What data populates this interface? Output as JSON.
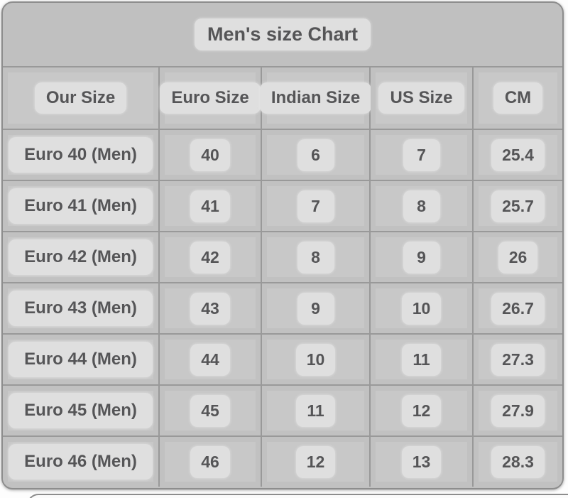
{
  "title": "Men's size Chart",
  "table": {
    "headers": [
      "Our Size",
      "Euro Size",
      "Indian Size",
      "US Size",
      "CM"
    ],
    "rows": [
      [
        "Euro 40 (Men)",
        "40",
        "6",
        "7",
        "25.4"
      ],
      [
        "Euro 41 (Men)",
        "41",
        "7",
        "8",
        "25.7"
      ],
      [
        "Euro 42 (Men)",
        "42",
        "8",
        "9",
        "26"
      ],
      [
        "Euro 43 (Men)",
        "43",
        "9",
        "10",
        "26.7"
      ],
      [
        "Euro 44 (Men)",
        "44",
        "10",
        "11",
        "27.3"
      ],
      [
        "Euro 45 (Men)",
        "45",
        "11",
        "12",
        "27.9"
      ],
      [
        "Euro 46 (Men)",
        "46",
        "12",
        "13",
        "28.3"
      ]
    ]
  },
  "colors": {
    "page_bg": "#fdfdfd",
    "card_bg": "#c0c0c0",
    "cell_bg": "#c8c8c8",
    "pill_bg": "#dfdfdf",
    "grid_line": "#999999",
    "border": "#8d8d8d",
    "text": "#555557"
  },
  "chart_data": {
    "type": "table",
    "title": "Men's size Chart",
    "columns": [
      "Our Size",
      "Euro Size",
      "Indian Size",
      "US Size",
      "CM"
    ],
    "rows": [
      [
        "Euro 40 (Men)",
        40,
        6,
        7,
        25.4
      ],
      [
        "Euro 41 (Men)",
        41,
        7,
        8,
        25.7
      ],
      [
        "Euro 42 (Men)",
        42,
        8,
        9,
        26
      ],
      [
        "Euro 43 (Men)",
        43,
        9,
        10,
        26.7
      ],
      [
        "Euro 44 (Men)",
        44,
        10,
        11,
        27.3
      ],
      [
        "Euro 45 (Men)",
        45,
        11,
        12,
        27.9
      ],
      [
        "Euro 46 (Men)",
        46,
        12,
        13,
        28.3
      ]
    ]
  }
}
